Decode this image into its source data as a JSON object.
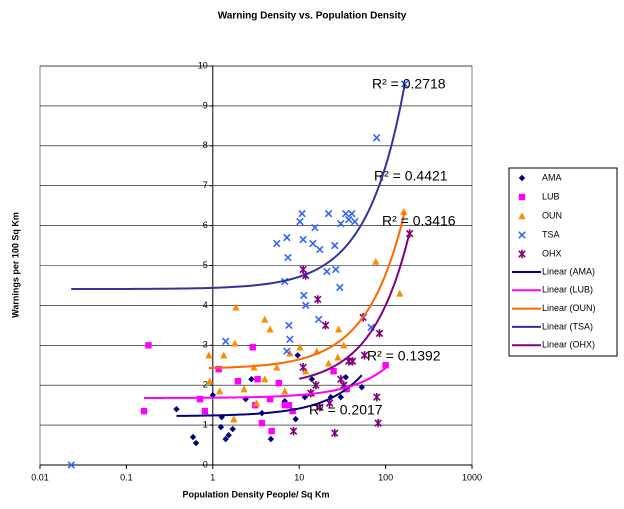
{
  "chart_data": {
    "type": "scatter",
    "title": "Warning Density vs. Population Density",
    "x_label": "Population Density People/ Sq Km",
    "y_label": "Warnings per 100 Sq Km",
    "x_log": true,
    "xlim": [
      0.01,
      1000
    ],
    "ylim": [
      0,
      10
    ],
    "xticks": [
      0.01,
      0.1,
      1,
      10,
      100,
      1000
    ],
    "yticks": [
      0,
      1,
      2,
      3,
      4,
      5,
      6,
      7,
      8,
      9,
      10
    ],
    "y_axis_at": 1,
    "grid": "y",
    "legend": "right",
    "series": [
      {
        "name": "AMA",
        "color": "#000080",
        "marker": "diamond",
        "x": [
          0.38,
          0.59,
          0.64,
          0.81,
          1.27,
          1.41,
          1.53,
          1.7,
          2.4,
          2.8,
          3.7,
          4.7,
          6.8,
          9.1,
          11.6,
          14,
          23.2,
          30.3,
          53,
          34.6,
          9.6,
          1.24,
          1
        ],
        "values": [
          1.4,
          0.7,
          0.55,
          1.35,
          1.2,
          0.65,
          0.75,
          0.9,
          1.65,
          2.15,
          1.3,
          0.65,
          1.6,
          1.15,
          1.7,
          2.15,
          1.7,
          1.7,
          1.95,
          2.2,
          2.75,
          0.95,
          1.75
        ]
      },
      {
        "name": "LUB",
        "color": "#ff00ff",
        "marker": "square",
        "x": [
          0.18,
          0.16,
          0.71,
          0.81,
          1.17,
          1.95,
          3.3,
          4.6,
          3.1,
          4.8,
          5.8,
          6.8,
          7.6,
          8.4,
          2.9,
          3.7,
          35.4,
          100,
          25
        ],
        "values": [
          3.0,
          1.35,
          1.65,
          1.35,
          2.4,
          2.1,
          2.15,
          1.65,
          1.5,
          0.85,
          2.05,
          1.5,
          1.5,
          1.35,
          2.95,
          1.05,
          1.9,
          2.5,
          2.35
        ]
      },
      {
        "name": "OUN",
        "color": "#ff8c00",
        "marker": "triangle",
        "x": [
          1.85,
          4,
          1.8,
          3,
          0.9,
          0.92,
          1.2,
          2.3,
          4,
          5.5,
          7.8,
          10.2,
          11.9,
          16,
          21.9,
          28,
          32.8,
          28.6,
          77,
          146,
          162,
          3.2,
          1.75,
          6.8,
          14,
          4.6,
          1.34
        ],
        "values": [
          3.95,
          3.65,
          3.05,
          2.45,
          2.75,
          2.1,
          1.85,
          1.9,
          2.15,
          2.45,
          2.8,
          2.95,
          2.35,
          2.85,
          2.55,
          2.7,
          3.0,
          3.4,
          5.1,
          4.3,
          6.35,
          1.55,
          1.15,
          1.85,
          1.8,
          3.4,
          2.75
        ]
      },
      {
        "name": "TSA",
        "color": "#3366ff",
        "marker": "x",
        "x": [
          0.023,
          1.41,
          5.5,
          7.2,
          7.4,
          10.2,
          10.8,
          11.1,
          14.4,
          15.2,
          17.3,
          21.9,
          25.8,
          29.5,
          34.6,
          37.4,
          40.6,
          44,
          30.3,
          20.9,
          26.5,
          78.8,
          166,
          7.6,
          7.8,
          7.2,
          11.3,
          11.9,
          16.8,
          68,
          6.8
        ],
        "values": [
          0,
          3.1,
          5.55,
          5.7,
          5.2,
          6.1,
          6.3,
          5.65,
          5.55,
          5.95,
          5.4,
          6.3,
          5.5,
          4.45,
          6.3,
          6.15,
          6.3,
          6.1,
          6.05,
          4.85,
          4.9,
          8.2,
          9.55,
          3.5,
          3.15,
          2.85,
          4.25,
          4.0,
          3.65,
          3.45,
          4.6
        ]
      },
      {
        "name": "OHX",
        "color": "#800080",
        "marker": "star",
        "x": [
          8.6,
          11.1,
          11.1,
          11.9,
          16.4,
          13.6,
          17.3,
          20.2,
          25.8,
          30.3,
          32.8,
          41.5,
          55,
          85,
          79,
          82,
          190,
          15.6,
          22.5,
          37.5,
          57
        ],
        "values": [
          0.85,
          2.45,
          4.9,
          4.75,
          4.15,
          1.8,
          1.45,
          3.5,
          0.8,
          2.15,
          2.0,
          2.6,
          3.7,
          3.3,
          1.7,
          1.05,
          5.8,
          2.0,
          1.55,
          2.6,
          2.75
        ]
      }
    ],
    "trendlines": [
      {
        "name": "Linear (AMA)",
        "color": "#000080",
        "x": [
          0.38,
          53
        ],
        "values": [
          1.23,
          2.25
        ],
        "r2": "R² = 0.2017"
      },
      {
        "name": "Linear (LUB)",
        "color": "#ff00ff",
        "x": [
          0.16,
          100
        ],
        "values": [
          1.68,
          2.43
        ],
        "r2": "R² = 0.1392"
      },
      {
        "name": "Linear (OUN)",
        "color": "#ff6600",
        "x": [
          0.9,
          166
        ],
        "values": [
          2.43,
          6.34
        ],
        "r2": "R² = 0.4421"
      },
      {
        "name": "Linear (TSA)",
        "color": "#333399",
        "x": [
          0.023,
          166
        ],
        "values": [
          4.41,
          9.52
        ],
        "r2": "R² = 0.2718"
      },
      {
        "name": "Linear (OHX)",
        "color": "#800080",
        "x": [
          10,
          190
        ],
        "values": [
          2.16,
          5.84
        ],
        "r2": "R² = 0.3416"
      }
    ]
  }
}
